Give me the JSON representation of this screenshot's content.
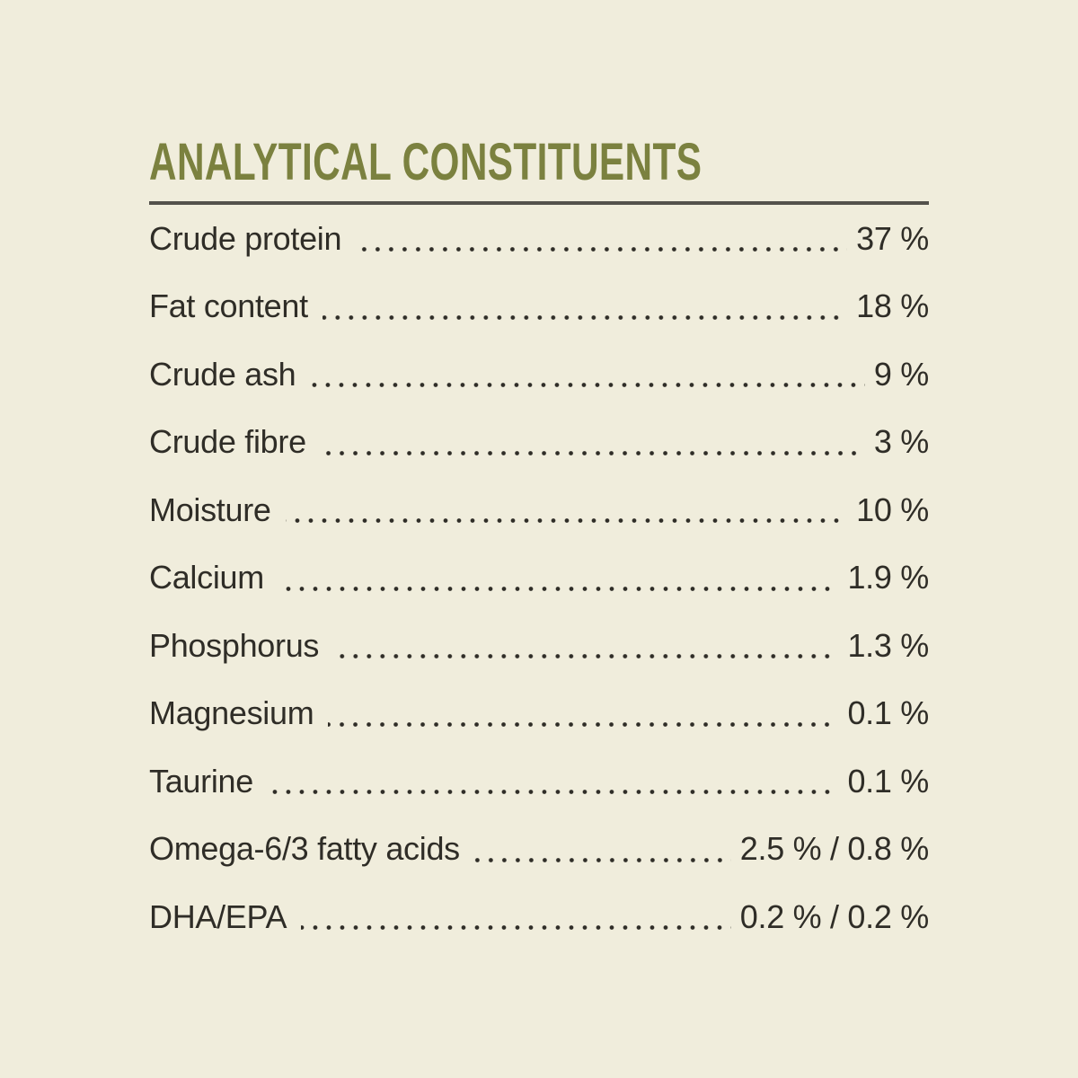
{
  "title": "ANALYTICAL CONSTITUENTS",
  "colors": {
    "background": "#f0eddc",
    "title": "#7b813f",
    "text": "#2f2d27",
    "divider": "#54524c"
  },
  "table": {
    "rows": [
      {
        "label": "Crude protein",
        "value": "37 %"
      },
      {
        "label": "Fat content",
        "value": "18 %"
      },
      {
        "label": "Crude ash",
        "value": "9 %"
      },
      {
        "label": "Crude fibre",
        "value": "3 %"
      },
      {
        "label": "Moisture",
        "value": "10 %"
      },
      {
        "label": "Calcium",
        "value": "1.9 %"
      },
      {
        "label": "Phosphorus",
        "value": "1.3 %"
      },
      {
        "label": "Magnesium",
        "value": "0.1 %"
      },
      {
        "label": "Taurine",
        "value": "0.1 %"
      },
      {
        "label": "Omega-6/3 fatty acids",
        "value": "2.5 % / 0.8 %"
      },
      {
        "label": "DHA/EPA",
        "value": "0.2 % / 0.2 %"
      }
    ]
  }
}
